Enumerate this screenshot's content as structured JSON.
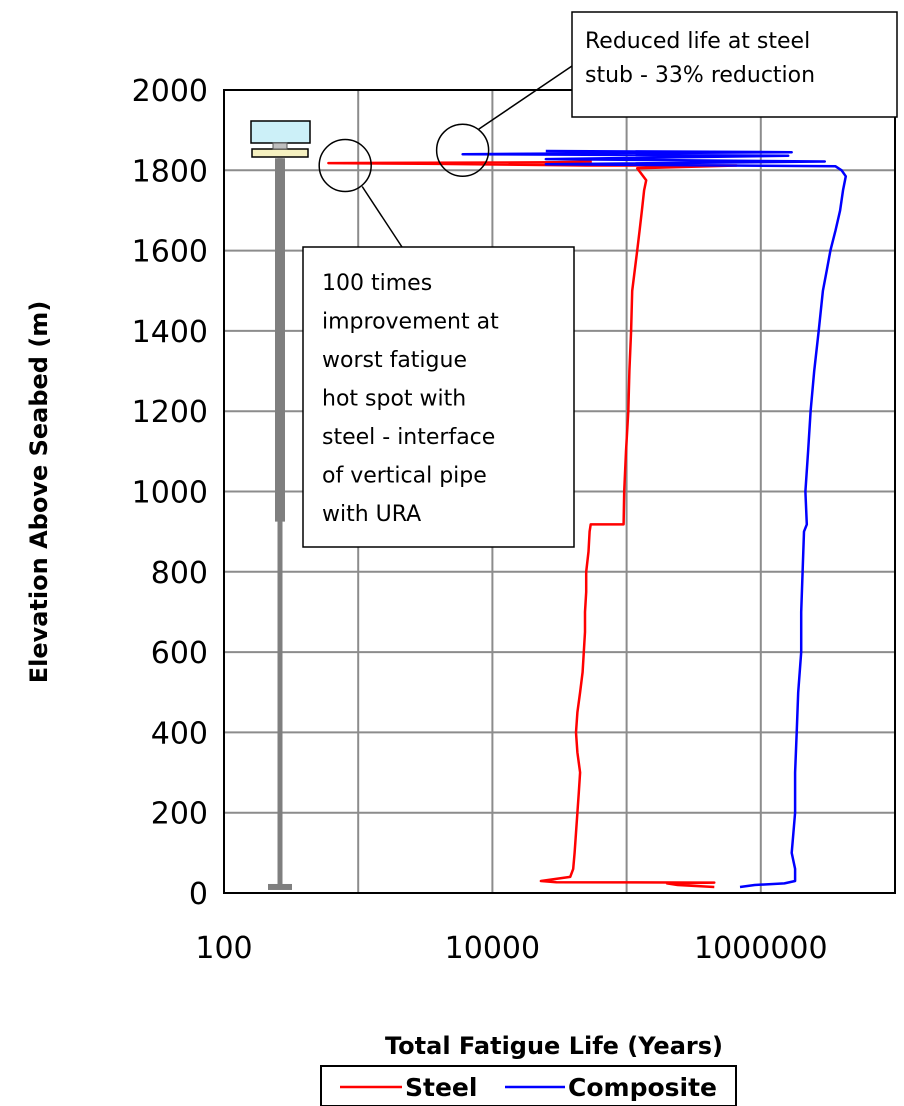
{
  "chart_data": {
    "type": "line",
    "title": "",
    "xlabel": "Total Fatigue Life (Years)",
    "ylabel": "Elevation Above Seabed (m)",
    "xscale": "log",
    "xlim": [
      100,
      10000000
    ],
    "ylim": [
      0,
      2000
    ],
    "x_tick_labels": [
      "100",
      "10000",
      "1000000"
    ],
    "y_ticks": [
      0,
      200,
      400,
      600,
      800,
      1000,
      1200,
      1400,
      1600,
      1800,
      2000
    ],
    "grid": true,
    "legend": "bottom",
    "series": [
      {
        "name": "Steel",
        "color": "#ff0000",
        "points": [
          [
            450000,
            15
          ],
          [
            240000,
            20
          ],
          [
            200000,
            24
          ],
          [
            450000,
            26
          ],
          [
            30000,
            27
          ],
          [
            23000,
            30
          ],
          [
            38000,
            40
          ],
          [
            40000,
            60
          ],
          [
            41000,
            100
          ],
          [
            42000,
            150
          ],
          [
            43000,
            200
          ],
          [
            44000,
            250
          ],
          [
            45000,
            300
          ],
          [
            43000,
            350
          ],
          [
            42000,
            400
          ],
          [
            43000,
            450
          ],
          [
            45000,
            500
          ],
          [
            47000,
            550
          ],
          [
            48000,
            600
          ],
          [
            49000,
            650
          ],
          [
            49000,
            700
          ],
          [
            50000,
            750
          ],
          [
            50000,
            800
          ],
          [
            52000,
            850
          ],
          [
            53000,
            900
          ],
          [
            54000,
            918
          ],
          [
            95000,
            918
          ],
          [
            96000,
            1000
          ],
          [
            99000,
            1100
          ],
          [
            103000,
            1200
          ],
          [
            105000,
            1300
          ],
          [
            108000,
            1400
          ],
          [
            110000,
            1500
          ],
          [
            115000,
            1550
          ],
          [
            120000,
            1600
          ],
          [
            125000,
            1650
          ],
          [
            130000,
            1700
          ],
          [
            135000,
            1750
          ],
          [
            140000,
            1775
          ],
          [
            120000,
            1805
          ],
          [
            660000,
            1812
          ],
          [
            50000,
            1812
          ],
          [
            4000,
            1816
          ],
          [
            600,
            1818
          ],
          [
            30000,
            1820
          ],
          [
            55000,
            1822
          ]
        ]
      },
      {
        "name": "Composite",
        "color": "#0000ff",
        "points": [
          [
            700000,
            15
          ],
          [
            900000,
            20
          ],
          [
            1500000,
            24
          ],
          [
            1800000,
            30
          ],
          [
            1800000,
            60
          ],
          [
            1700000,
            100
          ],
          [
            1750000,
            150
          ],
          [
            1800000,
            200
          ],
          [
            1800000,
            300
          ],
          [
            1850000,
            400
          ],
          [
            1900000,
            500
          ],
          [
            2000000,
            600
          ],
          [
            2000000,
            700
          ],
          [
            2050000,
            800
          ],
          [
            2100000,
            900
          ],
          [
            2200000,
            918
          ],
          [
            2150000,
            1000
          ],
          [
            2250000,
            1100
          ],
          [
            2350000,
            1200
          ],
          [
            2500000,
            1300
          ],
          [
            2700000,
            1400
          ],
          [
            2900000,
            1500
          ],
          [
            3100000,
            1550
          ],
          [
            3300000,
            1600
          ],
          [
            3600000,
            1650
          ],
          [
            3900000,
            1700
          ],
          [
            4100000,
            1750
          ],
          [
            4300000,
            1785
          ],
          [
            4000000,
            1800
          ],
          [
            3600000,
            1810
          ],
          [
            25000,
            1815
          ],
          [
            3000000,
            1822
          ],
          [
            25000,
            1828
          ],
          [
            1600000,
            1836
          ],
          [
            6000,
            1840
          ],
          [
            1700000,
            1845
          ],
          [
            25000,
            1848
          ]
        ]
      }
    ],
    "annotations": [
      {
        "lines": [
          "Reduced life at steel",
          "stub - 33% reduction"
        ],
        "circle_at": [
          6000,
          1850
        ]
      },
      {
        "lines": [
          "100 times",
          "improvement at",
          "worst fatigue",
          "hot spot with",
          "steel -  interface",
          "of vertical pipe",
          "with URA"
        ],
        "circle_at": [
          800,
          1812
        ]
      }
    ],
    "riser_schematic": {
      "x": 280,
      "bottom_elevation": 15,
      "top_elevation": 1830,
      "thick_section_bottom_elevation": 925,
      "buoy_color": "#ccf0f8",
      "plate_color": "#f5f0c0"
    }
  }
}
